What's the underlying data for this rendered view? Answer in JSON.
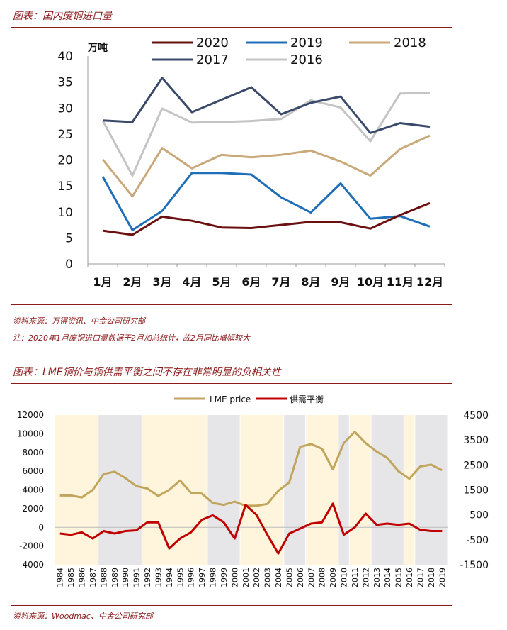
{
  "colors": {
    "title": "#8b1a1a",
    "s2020": "#6b1010",
    "s2019": "#1f6fb8",
    "s2018": "#c9a87a",
    "s2017": "#3a4a6b",
    "s2016": "#c4c4c4",
    "lme": "#c1a55c",
    "balance": "#c00000",
    "band_yellow": "#fff4dc",
    "band_gray": "#e6e6e9"
  },
  "chart1": {
    "title": "图表：国内废铜进口量",
    "source": "资料来源：万得资讯、中金公司研究部",
    "note": "注：2020年1月废铜进口量数据于2月加总统计，故2月同比增幅较大"
  },
  "chart2": {
    "title": "图表：LME铜价与铜供需平衡之间不存在非常明显的负相关性",
    "source": "资料来源：Woodmac、中金公司研究部"
  },
  "chart_data": [
    {
      "type": "line",
      "title": "国内废铜进口量",
      "ylabel": "万吨",
      "xlabel": "",
      "ylim": [
        0,
        40
      ],
      "yticks": [
        0,
        5,
        10,
        15,
        20,
        25,
        30,
        35,
        40
      ],
      "categories": [
        "1月",
        "2月",
        "3月",
        "4月",
        "5月",
        "6月",
        "7月",
        "8月",
        "9月",
        "10月",
        "11月",
        "12月"
      ],
      "series": [
        {
          "name": "2020",
          "color": "#6b1010",
          "values": [
            6.4,
            5.6,
            9.1,
            8.3,
            7.0,
            6.9,
            7.5,
            8.1,
            8.0,
            6.8,
            9.4,
            11.7
          ]
        },
        {
          "name": "2019",
          "color": "#1f6fb8",
          "values": [
            16.8,
            6.5,
            10.2,
            17.5,
            17.5,
            17.2,
            12.8,
            9.9,
            15.5,
            8.7,
            9.2,
            7.2
          ]
        },
        {
          "name": "2018",
          "color": "#c9a87a",
          "values": [
            20.1,
            13.0,
            22.3,
            18.4,
            21.0,
            20.5,
            21.0,
            21.8,
            19.7,
            17.0,
            22.1,
            24.7
          ]
        },
        {
          "name": "2017",
          "color": "#3a4a6b",
          "values": [
            27.6,
            27.3,
            35.8,
            29.2,
            31.6,
            34.0,
            28.8,
            31.0,
            32.2,
            25.2,
            27.1,
            26.4
          ]
        },
        {
          "name": "2016",
          "color": "#c4c4c4",
          "values": [
            27.6,
            17.0,
            29.9,
            27.2,
            27.3,
            27.5,
            27.9,
            31.5,
            30.1,
            23.6,
            32.8,
            32.9
          ]
        }
      ]
    },
    {
      "type": "line",
      "title": "LME铜价与铜供需平衡",
      "categories": [
        "1984",
        "1985",
        "1986",
        "1987",
        "1988",
        "1989",
        "1990",
        "1991",
        "1992",
        "1993",
        "1994",
        "1995",
        "1996",
        "1997",
        "1998",
        "1999",
        "2000",
        "2001",
        "2002",
        "2003",
        "2004",
        "2005",
        "2006",
        "2007",
        "2008",
        "2009",
        "2010",
        "2011",
        "2012",
        "2013",
        "2014",
        "2015",
        "2016",
        "2017",
        "2018",
        "2019"
      ],
      "left_axis": {
        "ylim": [
          -4000,
          12000
        ],
        "yticks": [
          -4000,
          -2000,
          0,
          2000,
          4000,
          6000,
          8000,
          10000,
          12000
        ]
      },
      "right_axis": {
        "ylim": [
          -1500,
          4500
        ],
        "yticks": [
          -1500,
          -500,
          500,
          1500,
          2500,
          3500,
          4500
        ]
      },
      "series": [
        {
          "name": "LME price",
          "axis": "left",
          "color": "#c1a55c",
          "values": [
            3400,
            3400,
            3200,
            4000,
            5700,
            5950,
            5250,
            4400,
            4150,
            3350,
            4000,
            5000,
            3700,
            3600,
            2600,
            2400,
            2750,
            2300,
            2300,
            2500,
            3900,
            4800,
            8600,
            8900,
            8400,
            6200,
            9000,
            10200,
            9000,
            8100,
            7400,
            6000,
            5200,
            6500,
            6700,
            6100
          ]
        },
        {
          "name": "供需平衡",
          "axis": "right",
          "color": "#c00000",
          "values": [
            -250,
            -300,
            -200,
            -450,
            -150,
            -250,
            -150,
            -120,
            200,
            200,
            -850,
            -450,
            -200,
            300,
            480,
            200,
            -450,
            900,
            500,
            -300,
            -1050,
            -250,
            -50,
            150,
            200,
            950,
            -300,
            0,
            550,
            100,
            150,
            100,
            150,
            -100,
            -150,
            -150
          ]
        }
      ],
      "bands": [
        {
          "from": "1984",
          "to": "1987",
          "tone": "yellow"
        },
        {
          "from": "1988",
          "to": "1991",
          "tone": "gray"
        },
        {
          "from": "1992",
          "to": "1997",
          "tone": "yellow"
        },
        {
          "from": "1998",
          "to": "2000",
          "tone": "gray"
        },
        {
          "from": "2001",
          "to": "2004",
          "tone": "yellow"
        },
        {
          "from": "2005",
          "to": "2006",
          "tone": "gray"
        },
        {
          "from": "2007",
          "to": "2009",
          "tone": "yellow"
        },
        {
          "from": "2010",
          "to": "2010",
          "tone": "gray"
        },
        {
          "from": "2011",
          "to": "2012",
          "tone": "yellow"
        },
        {
          "from": "2013",
          "to": "2015",
          "tone": "gray"
        },
        {
          "from": "2016",
          "to": "2016",
          "tone": "yellow"
        },
        {
          "from": "2017",
          "to": "2019",
          "tone": "gray"
        }
      ]
    }
  ]
}
